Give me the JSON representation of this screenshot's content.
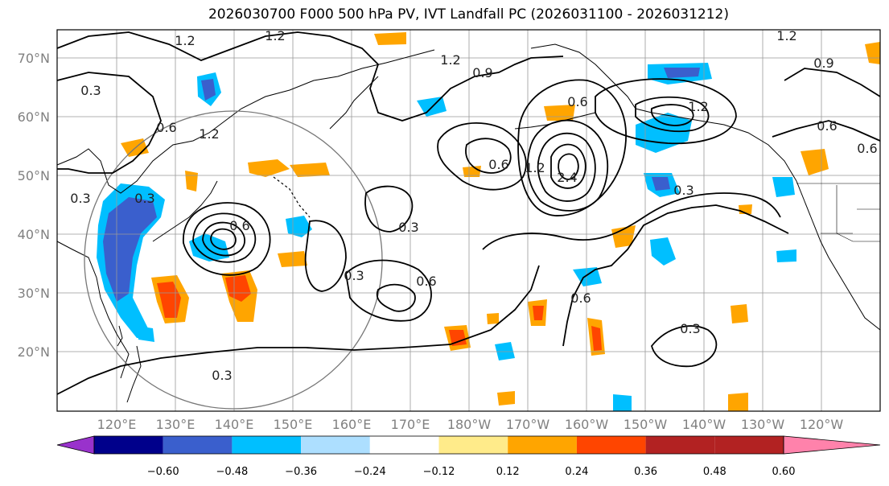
{
  "title": "2026030700 F000 500 hPa PV, IVT Landfall PC (2026031100 - 2026031212)",
  "lat_labels": [
    "70°N",
    "60°N",
    "50°N",
    "40°N",
    "30°N",
    "20°N"
  ],
  "lon_labels": [
    "120°E",
    "130°E",
    "140°E",
    "150°E",
    "160°E",
    "170°E",
    "180°W",
    "170°W",
    "160°W",
    "150°W",
    "140°W",
    "130°W",
    "120°W"
  ],
  "contour_labels": [
    "1.2",
    "1.2",
    "1.2",
    "1.2",
    "1.2",
    "0.9",
    "0.3",
    "0.6",
    "0.3",
    "0.3",
    "1.2",
    "0.6",
    "0.3",
    "0.3",
    "0.6",
    "0.6",
    "0.3",
    "0.6",
    "1.2",
    "2.4",
    "0.6",
    "0.9",
    "0.3",
    "0.6",
    "0.3",
    "0.6"
  ],
  "colorbar": {
    "ticks": [
      "−0.60",
      "−0.48",
      "−0.36",
      "−0.24",
      "−0.12",
      "0.12",
      "0.24",
      "0.36",
      "0.48",
      "0.60"
    ],
    "colors": [
      "#9932CC",
      "#00008B",
      "#3A5FCD",
      "#00BFFF",
      "#ADDFFF",
      "#FFFFFF",
      "#FFEB8A",
      "#FFA500",
      "#FF4500",
      "#B22222",
      "#FF82AB"
    ]
  }
}
